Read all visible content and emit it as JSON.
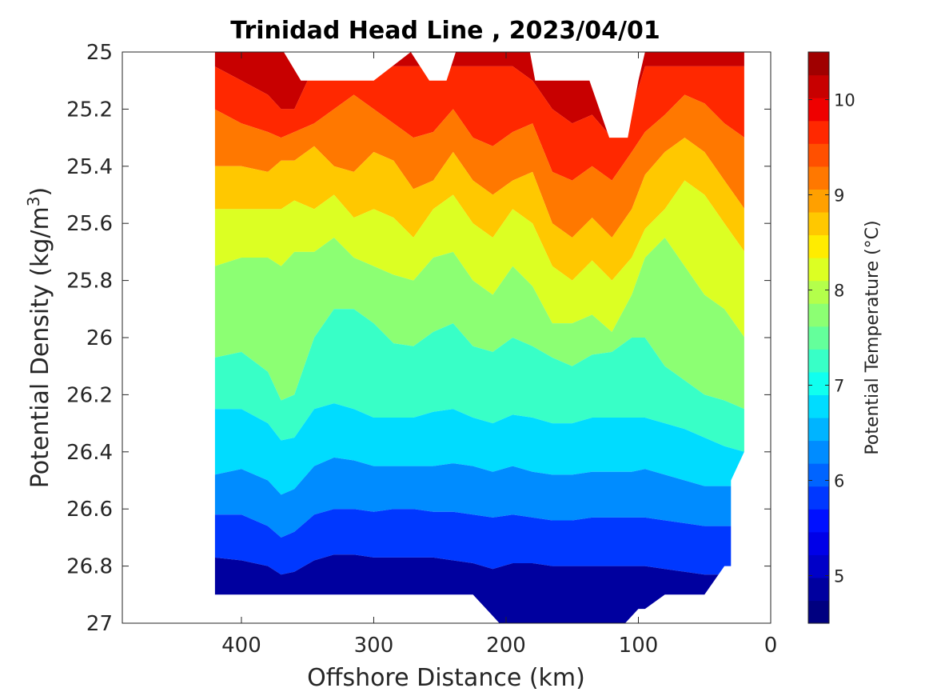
{
  "chart_data": {
    "type": "heatmap",
    "subtype": "filled-contour",
    "title": "Trinidad Head Line , 2023/04/01",
    "xlabel": "Offshore Distance (km)",
    "ylabel_main": "Potential Density (kg/m",
    "ylabel_sup": "3",
    "ylabel_tail": ")",
    "x_reversed": true,
    "y_reversed": true,
    "xlim": [
      490,
      0
    ],
    "ylim": [
      25,
      27
    ],
    "x_ticks": [
      400,
      300,
      200,
      100,
      0
    ],
    "x_tick_labels": [
      "400",
      "300",
      "200",
      "100",
      "0"
    ],
    "y_ticks": [
      25,
      25.2,
      25.4,
      25.6,
      25.8,
      26,
      26.2,
      26.4,
      26.6,
      26.8,
      27
    ],
    "y_tick_labels": [
      "25",
      "25.2",
      "25.4",
      "25.6",
      "25.8",
      "26",
      "26.2",
      "26.4",
      "26.6",
      "26.8",
      "27"
    ],
    "grid": false,
    "colorbar": {
      "label": "Potential Temperature (°C)",
      "range": [
        4.5,
        10.5
      ],
      "level_step": 0.25,
      "ticks": [
        5,
        6,
        7,
        8,
        9,
        10
      ],
      "tick_labels": [
        "5",
        "6",
        "7",
        "8",
        "9",
        "10"
      ],
      "colors": [
        "#000080",
        "#00009f",
        "#0000c8",
        "#0000e8",
        "#0010ff",
        "#0038ff",
        "#0064ff",
        "#008cff",
        "#00b4ff",
        "#00dcff",
        "#10ffef",
        "#38ffc7",
        "#64ff9b",
        "#8cff73",
        "#b4ff4b",
        "#dcff23",
        "#ffec00",
        "#ffc800",
        "#ffa000",
        "#ff7800",
        "#ff5000",
        "#ff2800",
        "#ef0000",
        "#c80000",
        "#a00000"
      ]
    },
    "data_columns_x": [
      420,
      400,
      380,
      370,
      360,
      345,
      330,
      315,
      300,
      285,
      270,
      255,
      240,
      225,
      210,
      195,
      180,
      165,
      150,
      135,
      120,
      105,
      95,
      80,
      65,
      50,
      35,
      20
    ],
    "isotherm_levels": [
      10.0,
      9.5,
      9.0,
      8.5,
      8.0,
      7.5,
      7.0,
      6.5,
      6.0,
      5.5
    ],
    "isotherm_sigma": [
      [
        25.05,
        25.1,
        25.15,
        25.2,
        25.2,
        25.05,
        25.05,
        25.05,
        25.05,
        25.05,
        25.05,
        25.05,
        25.05,
        25.05,
        25.05,
        25.05,
        25.1,
        25.2,
        25.25,
        25.22,
        25.3,
        25.2,
        25.05,
        25.05,
        25.05,
        25.05,
        25.05,
        25.05
      ],
      [
        25.2,
        25.25,
        25.28,
        25.3,
        25.28,
        25.25,
        25.2,
        25.15,
        25.2,
        25.25,
        25.3,
        25.28,
        25.2,
        25.3,
        25.33,
        25.28,
        25.25,
        25.42,
        25.45,
        25.4,
        25.45,
        25.35,
        25.28,
        25.22,
        25.15,
        25.18,
        25.25,
        25.3
      ],
      [
        25.4,
        25.4,
        25.42,
        25.38,
        25.38,
        25.33,
        25.4,
        25.42,
        25.35,
        25.38,
        25.48,
        25.45,
        25.35,
        25.45,
        25.5,
        25.45,
        25.42,
        25.6,
        25.65,
        25.58,
        25.65,
        25.55,
        25.43,
        25.35,
        25.3,
        25.35,
        25.45,
        25.55
      ],
      [
        25.55,
        25.55,
        25.55,
        25.55,
        25.52,
        25.55,
        25.5,
        25.58,
        25.55,
        25.58,
        25.65,
        25.55,
        25.5,
        25.6,
        25.65,
        25.55,
        25.6,
        25.75,
        25.8,
        25.73,
        25.8,
        25.72,
        25.62,
        25.55,
        25.45,
        25.5,
        25.6,
        25.7
      ],
      [
        25.75,
        25.72,
        25.72,
        25.75,
        25.7,
        25.7,
        25.65,
        25.72,
        25.75,
        25.78,
        25.8,
        25.72,
        25.7,
        25.8,
        25.85,
        25.75,
        25.82,
        25.95,
        25.95,
        25.92,
        25.98,
        25.85,
        25.72,
        25.65,
        25.75,
        25.85,
        25.9,
        26.0
      ],
      [
        26.07,
        26.05,
        26.12,
        26.22,
        26.2,
        26.0,
        25.9,
        25.9,
        25.95,
        26.02,
        26.03,
        25.98,
        25.95,
        26.03,
        26.05,
        26.0,
        26.03,
        26.07,
        26.1,
        26.06,
        26.05,
        26.0,
        26.0,
        26.1,
        26.15,
        26.2,
        26.22,
        26.25
      ],
      [
        26.25,
        26.25,
        26.3,
        26.36,
        26.35,
        26.25,
        26.23,
        26.25,
        26.28,
        26.28,
        26.28,
        26.26,
        26.25,
        26.28,
        26.3,
        26.27,
        26.28,
        26.3,
        26.3,
        26.28,
        26.28,
        26.28,
        26.28,
        26.3,
        26.32,
        26.35,
        26.38,
        26.4
      ],
      [
        26.48,
        26.46,
        26.5,
        26.55,
        26.53,
        26.45,
        26.42,
        26.43,
        26.45,
        26.45,
        26.45,
        26.45,
        26.44,
        26.45,
        26.47,
        26.45,
        26.47,
        26.48,
        26.48,
        26.47,
        26.47,
        26.47,
        26.46,
        26.48,
        26.5,
        26.52,
        26.52,
        26.52
      ],
      [
        26.62,
        26.62,
        26.66,
        26.7,
        26.68,
        26.62,
        26.6,
        26.6,
        26.61,
        26.6,
        26.6,
        26.61,
        26.61,
        26.62,
        26.63,
        26.62,
        26.63,
        26.64,
        26.64,
        26.63,
        26.63,
        26.63,
        26.63,
        26.64,
        26.65,
        26.66,
        26.66,
        26.66
      ],
      [
        26.77,
        26.78,
        26.8,
        26.83,
        26.82,
        26.78,
        26.76,
        26.76,
        26.77,
        26.77,
        26.77,
        26.77,
        26.78,
        26.79,
        26.81,
        26.79,
        26.79,
        26.8,
        26.8,
        26.8,
        26.8,
        26.8,
        26.8,
        26.81,
        26.82,
        26.83,
        26.83,
        26.83
      ]
    ],
    "domain_outline_x": [
      420,
      368,
      355,
      332,
      300,
      272,
      258,
      245,
      238,
      182,
      178,
      160,
      152,
      137,
      122,
      108,
      100,
      100,
      95,
      20,
      20,
      30,
      30,
      35,
      50,
      65,
      80,
      95,
      100,
      110,
      165,
      185,
      205,
      215,
      225,
      255,
      420
    ],
    "domain_outline_sigma": [
      25,
      25,
      25.1,
      25.1,
      25.1,
      25,
      25.1,
      25.1,
      25,
      25,
      25.1,
      25.1,
      25.1,
      25.1,
      25.3,
      25.3,
      25.1,
      25.1,
      25,
      25,
      26.4,
      26.5,
      26.8,
      26.8,
      26.9,
      26.9,
      26.9,
      26.95,
      26.95,
      27.0,
      27.0,
      27.0,
      27.0,
      26.95,
      26.9,
      26.9,
      26.9
    ]
  }
}
